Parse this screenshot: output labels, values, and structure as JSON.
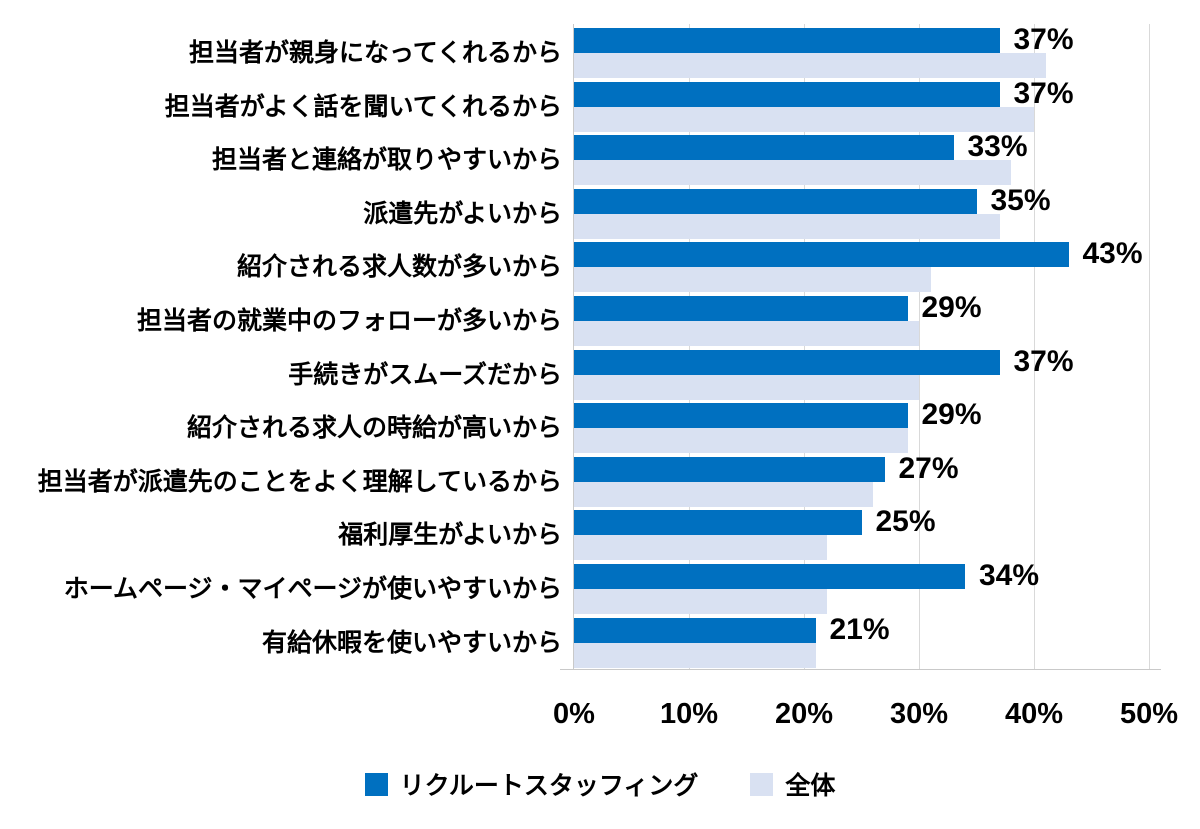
{
  "chart_data": {
    "type": "bar",
    "orientation": "horizontal",
    "title": "",
    "xlabel": "",
    "ylabel": "",
    "xlim": [
      0,
      50
    ],
    "x_ticks": [
      "0%",
      "10%",
      "20%",
      "30%",
      "40%",
      "50%"
    ],
    "grid": true,
    "legend_position": "bottom",
    "categories": [
      "担当者が親身になってくれるから",
      "担当者がよく話を聞いてくれるから",
      "担当者と連絡が取りやすいから",
      "派遣先がよいから",
      "紹介される求人数が多いから",
      "担当者の就業中のフォローが多いから",
      "手続きがスムーズだから",
      "紹介される求人の時給が高いから",
      "担当者が派遣先のことをよく理解しているから",
      "福利厚生がよいから",
      "ホームページ・マイページが使いやすいから",
      "有給休暇を使いやすいから"
    ],
    "series": [
      {
        "name": "リクルートスタッフィング",
        "color": "#0070C0",
        "values": [
          37,
          37,
          33,
          35,
          43,
          29,
          37,
          29,
          27,
          25,
          34,
          21
        ],
        "data_labels": [
          "37%",
          "37%",
          "33%",
          "35%",
          "43%",
          "29%",
          "37%",
          "29%",
          "27%",
          "25%",
          "34%",
          "21%"
        ]
      },
      {
        "name": "全体",
        "color": "#D9E1F2",
        "values": [
          41,
          40,
          38,
          37,
          31,
          30,
          30,
          29,
          26,
          22,
          22,
          21
        ],
        "data_labels": []
      }
    ],
    "colors": {
      "gridline": "#D9D9D9",
      "axis_line": "#C9C9C9",
      "label_text": "#000000"
    }
  }
}
